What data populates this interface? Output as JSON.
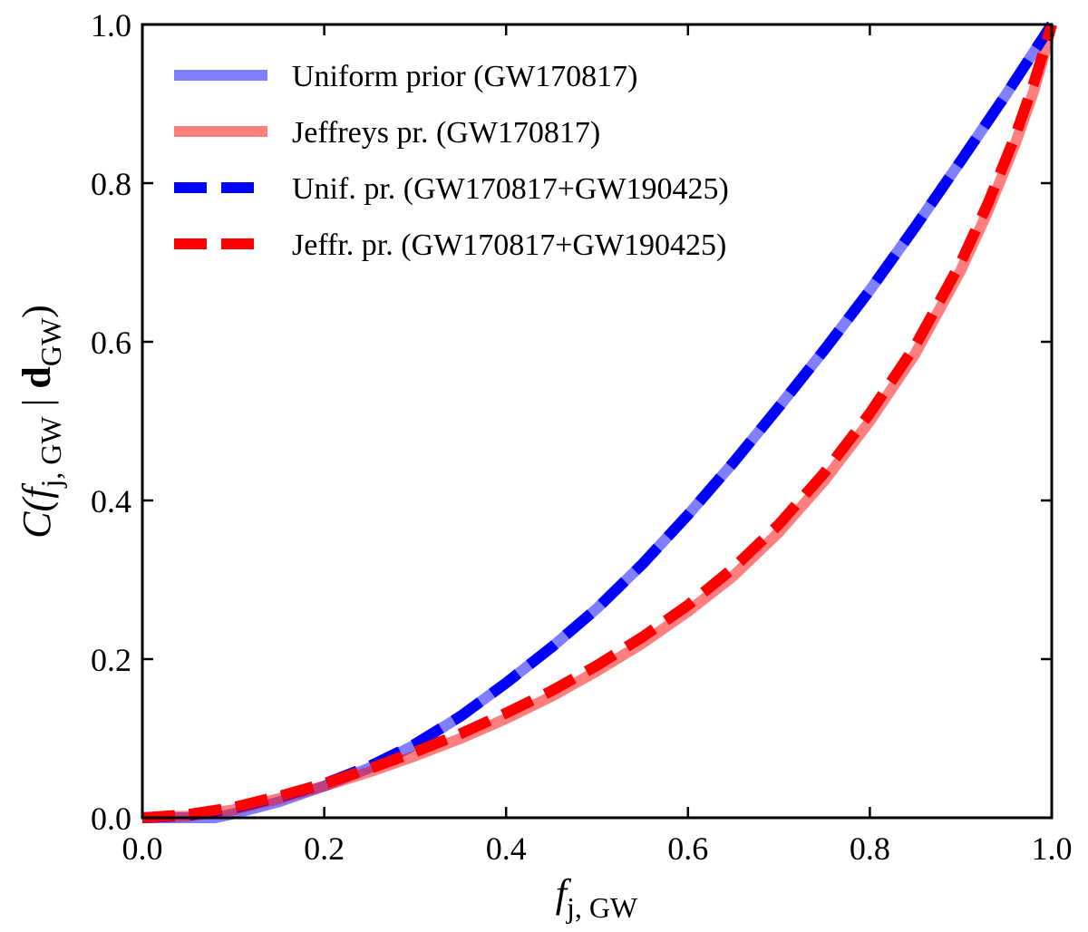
{
  "chart_data": {
    "type": "line",
    "title": "",
    "xlabel": {
      "base": "f",
      "sub": "j, GW"
    },
    "ylabel": {
      "prefix": "C(",
      "f": "f",
      "fsub": "j, GW",
      "sep": " | ",
      "d": "d",
      "dsub": "GW",
      "close": ")"
    },
    "xlim": [
      0.0,
      1.0
    ],
    "ylim": [
      0.0,
      1.0
    ],
    "xticks": [
      "0.0",
      "0.2",
      "0.4",
      "0.6",
      "0.8",
      "1.0"
    ],
    "yticks": [
      "0.0",
      "0.2",
      "0.4",
      "0.6",
      "0.8",
      "1.0"
    ],
    "xtick_values": [
      0.0,
      0.2,
      0.4,
      0.6,
      0.8,
      1.0
    ],
    "ytick_values": [
      0.0,
      0.2,
      0.4,
      0.6,
      0.8,
      1.0
    ],
    "grid": false,
    "legend_position": "top-left",
    "series": [
      {
        "name": "Uniform prior (GW170817)",
        "color": "#0000ff",
        "alpha": 0.5,
        "style": "solid",
        "x": [
          0.0,
          0.05,
          0.08,
          0.1,
          0.15,
          0.2,
          0.25,
          0.3,
          0.35,
          0.4,
          0.45,
          0.5,
          0.55,
          0.6,
          0.65,
          0.7,
          0.75,
          0.8,
          0.85,
          0.9,
          0.95,
          1.0
        ],
        "y": [
          0.0,
          0.0,
          0.0,
          0.005,
          0.02,
          0.04,
          0.063,
          0.092,
          0.128,
          0.17,
          0.215,
          0.264,
          0.32,
          0.382,
          0.448,
          0.518,
          0.59,
          0.665,
          0.745,
          0.828,
          0.912,
          1.0
        ]
      },
      {
        "name": "Jeffreys pr. (GW170817)",
        "color": "#ff0000",
        "alpha": 0.5,
        "style": "solid",
        "x": [
          0.0,
          0.05,
          0.1,
          0.15,
          0.2,
          0.25,
          0.3,
          0.35,
          0.4,
          0.45,
          0.5,
          0.55,
          0.6,
          0.65,
          0.7,
          0.75,
          0.8,
          0.85,
          0.9,
          0.93,
          0.96,
          0.98,
          0.99,
          1.0
        ],
        "y": [
          0.0,
          0.002,
          0.01,
          0.024,
          0.04,
          0.058,
          0.078,
          0.1,
          0.125,
          0.153,
          0.185,
          0.22,
          0.26,
          0.305,
          0.36,
          0.425,
          0.5,
          0.585,
          0.69,
          0.765,
          0.85,
          0.915,
          0.955,
          1.0
        ]
      },
      {
        "name": "Unif. pr. (GW170817+GW190425)",
        "color": "#0000ff",
        "alpha": 1.0,
        "style": "dashed",
        "x": [
          0.0,
          0.05,
          0.1,
          0.15,
          0.2,
          0.25,
          0.3,
          0.35,
          0.4,
          0.45,
          0.5,
          0.55,
          0.6,
          0.65,
          0.7,
          0.75,
          0.8,
          0.85,
          0.9,
          0.95,
          1.0
        ],
        "y": [
          0.0,
          0.003,
          0.012,
          0.026,
          0.043,
          0.065,
          0.093,
          0.128,
          0.17,
          0.215,
          0.264,
          0.32,
          0.382,
          0.448,
          0.518,
          0.59,
          0.665,
          0.745,
          0.828,
          0.912,
          1.0
        ]
      },
      {
        "name": "Jeffr. pr. (GW170817+GW190425)",
        "color": "#ff0000",
        "alpha": 1.0,
        "style": "dashed",
        "x": [
          0.0,
          0.05,
          0.1,
          0.15,
          0.2,
          0.25,
          0.3,
          0.35,
          0.4,
          0.45,
          0.5,
          0.55,
          0.6,
          0.65,
          0.7,
          0.75,
          0.8,
          0.85,
          0.9,
          0.93,
          0.96,
          0.98,
          0.99,
          1.0
        ],
        "y": [
          0.0,
          0.004,
          0.013,
          0.027,
          0.043,
          0.062,
          0.083,
          0.106,
          0.132,
          0.16,
          0.192,
          0.228,
          0.268,
          0.315,
          0.37,
          0.435,
          0.51,
          0.595,
          0.7,
          0.775,
          0.86,
          0.925,
          0.962,
          1.0
        ]
      }
    ]
  }
}
